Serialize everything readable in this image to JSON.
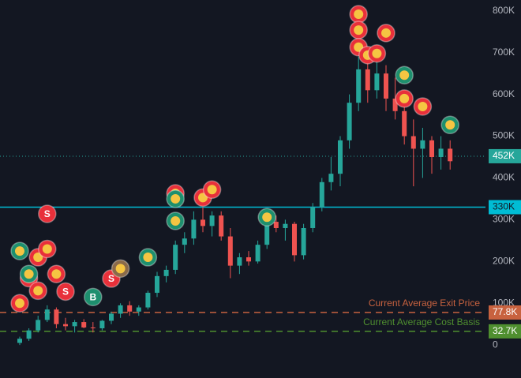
{
  "chart_data": {
    "type": "candlestick",
    "up_color": "#26a69a",
    "down_color": "#ef5350",
    "open": [
      5,
      15,
      35,
      60,
      85,
      50,
      45,
      55,
      42,
      40,
      58,
      75,
      95,
      80,
      90,
      125,
      165,
      180,
      240,
      255,
      300,
      285,
      310,
      260,
      190,
      210,
      200,
      240,
      295,
      280,
      290,
      215,
      280,
      330,
      390,
      410,
      490,
      580,
      660,
      610,
      650,
      590,
      560,
      500,
      470,
      490,
      450,
      470
    ],
    "high": [
      20,
      40,
      70,
      95,
      90,
      65,
      60,
      62,
      55,
      60,
      80,
      100,
      105,
      95,
      130,
      175,
      190,
      250,
      270,
      320,
      330,
      320,
      320,
      280,
      220,
      225,
      250,
      300,
      310,
      300,
      295,
      290,
      340,
      400,
      450,
      500,
      600,
      690,
      700,
      680,
      670,
      640,
      600,
      540,
      520,
      500,
      500,
      490
    ],
    "low": [
      0,
      10,
      30,
      55,
      40,
      35,
      30,
      40,
      30,
      35,
      50,
      65,
      70,
      70,
      85,
      115,
      150,
      170,
      220,
      240,
      270,
      260,
      250,
      160,
      170,
      190,
      195,
      230,
      270,
      250,
      200,
      205,
      270,
      320,
      370,
      380,
      470,
      560,
      580,
      590,
      560,
      540,
      480,
      380,
      400,
      410,
      420,
      420
    ],
    "close": [
      15,
      35,
      60,
      85,
      50,
      45,
      55,
      42,
      40,
      58,
      75,
      95,
      80,
      90,
      125,
      165,
      180,
      240,
      255,
      300,
      285,
      310,
      260,
      190,
      210,
      200,
      240,
      295,
      280,
      290,
      215,
      280,
      330,
      390,
      410,
      490,
      580,
      660,
      610,
      650,
      590,
      560,
      500,
      470,
      490,
      450,
      470,
      440
    ],
    "ylim": [
      -79,
      826
    ],
    "yticks": [
      {
        "value": 800,
        "label": "800K"
      },
      {
        "value": 700,
        "label": "700K"
      },
      {
        "value": 600,
        "label": "600K"
      },
      {
        "value": 500,
        "label": "500K"
      },
      {
        "value": 400,
        "label": "400K"
      },
      {
        "value": 300,
        "label": "300K"
      },
      {
        "value": 200,
        "label": "200K"
      },
      {
        "value": 100,
        "label": "100K"
      },
      0
    ],
    "price_lines": [
      {
        "value": 452,
        "label": "452K",
        "color": "#26a69a",
        "style": "dotted"
      },
      {
        "value": 330,
        "label": "330K",
        "color": "#00bcd4",
        "style": "solid"
      },
      {
        "value": 77.8,
        "label": "77.8K",
        "color": "#c8623f",
        "style": "dashed",
        "text": "Current Average Exit Price"
      },
      {
        "value": 32.7,
        "label": "32.7K",
        "color": "#4f8f2f",
        "style": "dashed",
        "text": "Current Average Cost Basis"
      }
    ],
    "markers": [
      {
        "index": 0,
        "price": 100,
        "color": "#e8303a"
      },
      {
        "index": 1,
        "price": 160,
        "color": "#e8303a"
      },
      {
        "index": 2,
        "price": 130,
        "color": "#e8303a"
      },
      {
        "index": 2,
        "price": 210,
        "color": "#e8303a"
      },
      {
        "index": 3,
        "price": 230,
        "color": "#e8303a"
      },
      {
        "index": 4,
        "price": 170,
        "color": "#e8303a"
      },
      {
        "index": 0,
        "price": 225,
        "color": "#1e8f6e"
      },
      {
        "index": 1,
        "price": 170,
        "color": "#1e8f6e"
      },
      {
        "index": 3,
        "price": 314,
        "color": "#e8303a",
        "label": "S"
      },
      {
        "index": 5,
        "price": 128,
        "color": "#e8303a",
        "label": "S"
      },
      {
        "index": 8,
        "price": 115,
        "color": "#1e8f6e",
        "label": "B"
      },
      {
        "index": 10,
        "price": 159,
        "color": "#e8303a",
        "label": "S"
      },
      {
        "index": 11,
        "price": 183,
        "color": "#8a6a4a"
      },
      {
        "index": 14,
        "price": 210,
        "color": "#1e8f6e"
      },
      {
        "index": 17,
        "price": 363,
        "color": "#e8303a"
      },
      {
        "index": 17,
        "price": 350,
        "color": "#1e8f6e"
      },
      {
        "index": 17,
        "price": 297,
        "color": "#1e8f6e"
      },
      {
        "index": 20,
        "price": 353,
        "color": "#e8303a"
      },
      {
        "index": 21,
        "price": 372,
        "color": "#e8303a"
      },
      {
        "index": 27,
        "price": 306,
        "color": "#1e8f6e"
      },
      {
        "index": 37,
        "price": 792,
        "color": "#e8303a"
      },
      {
        "index": 37,
        "price": 754,
        "color": "#e8303a"
      },
      {
        "index": 37,
        "price": 713,
        "color": "#e8303a"
      },
      {
        "index": 38,
        "price": 694,
        "color": "#e8303a"
      },
      {
        "index": 39,
        "price": 698,
        "color": "#e8303a"
      },
      {
        "index": 40,
        "price": 747,
        "color": "#e8303a"
      },
      {
        "index": 42,
        "price": 646,
        "color": "#1e8f6e"
      },
      {
        "index": 42,
        "price": 590,
        "color": "#e8303a"
      },
      {
        "index": 44,
        "price": 571,
        "color": "#e8303a"
      },
      {
        "index": 47,
        "price": 527,
        "color": "#1e8f6e"
      }
    ]
  }
}
